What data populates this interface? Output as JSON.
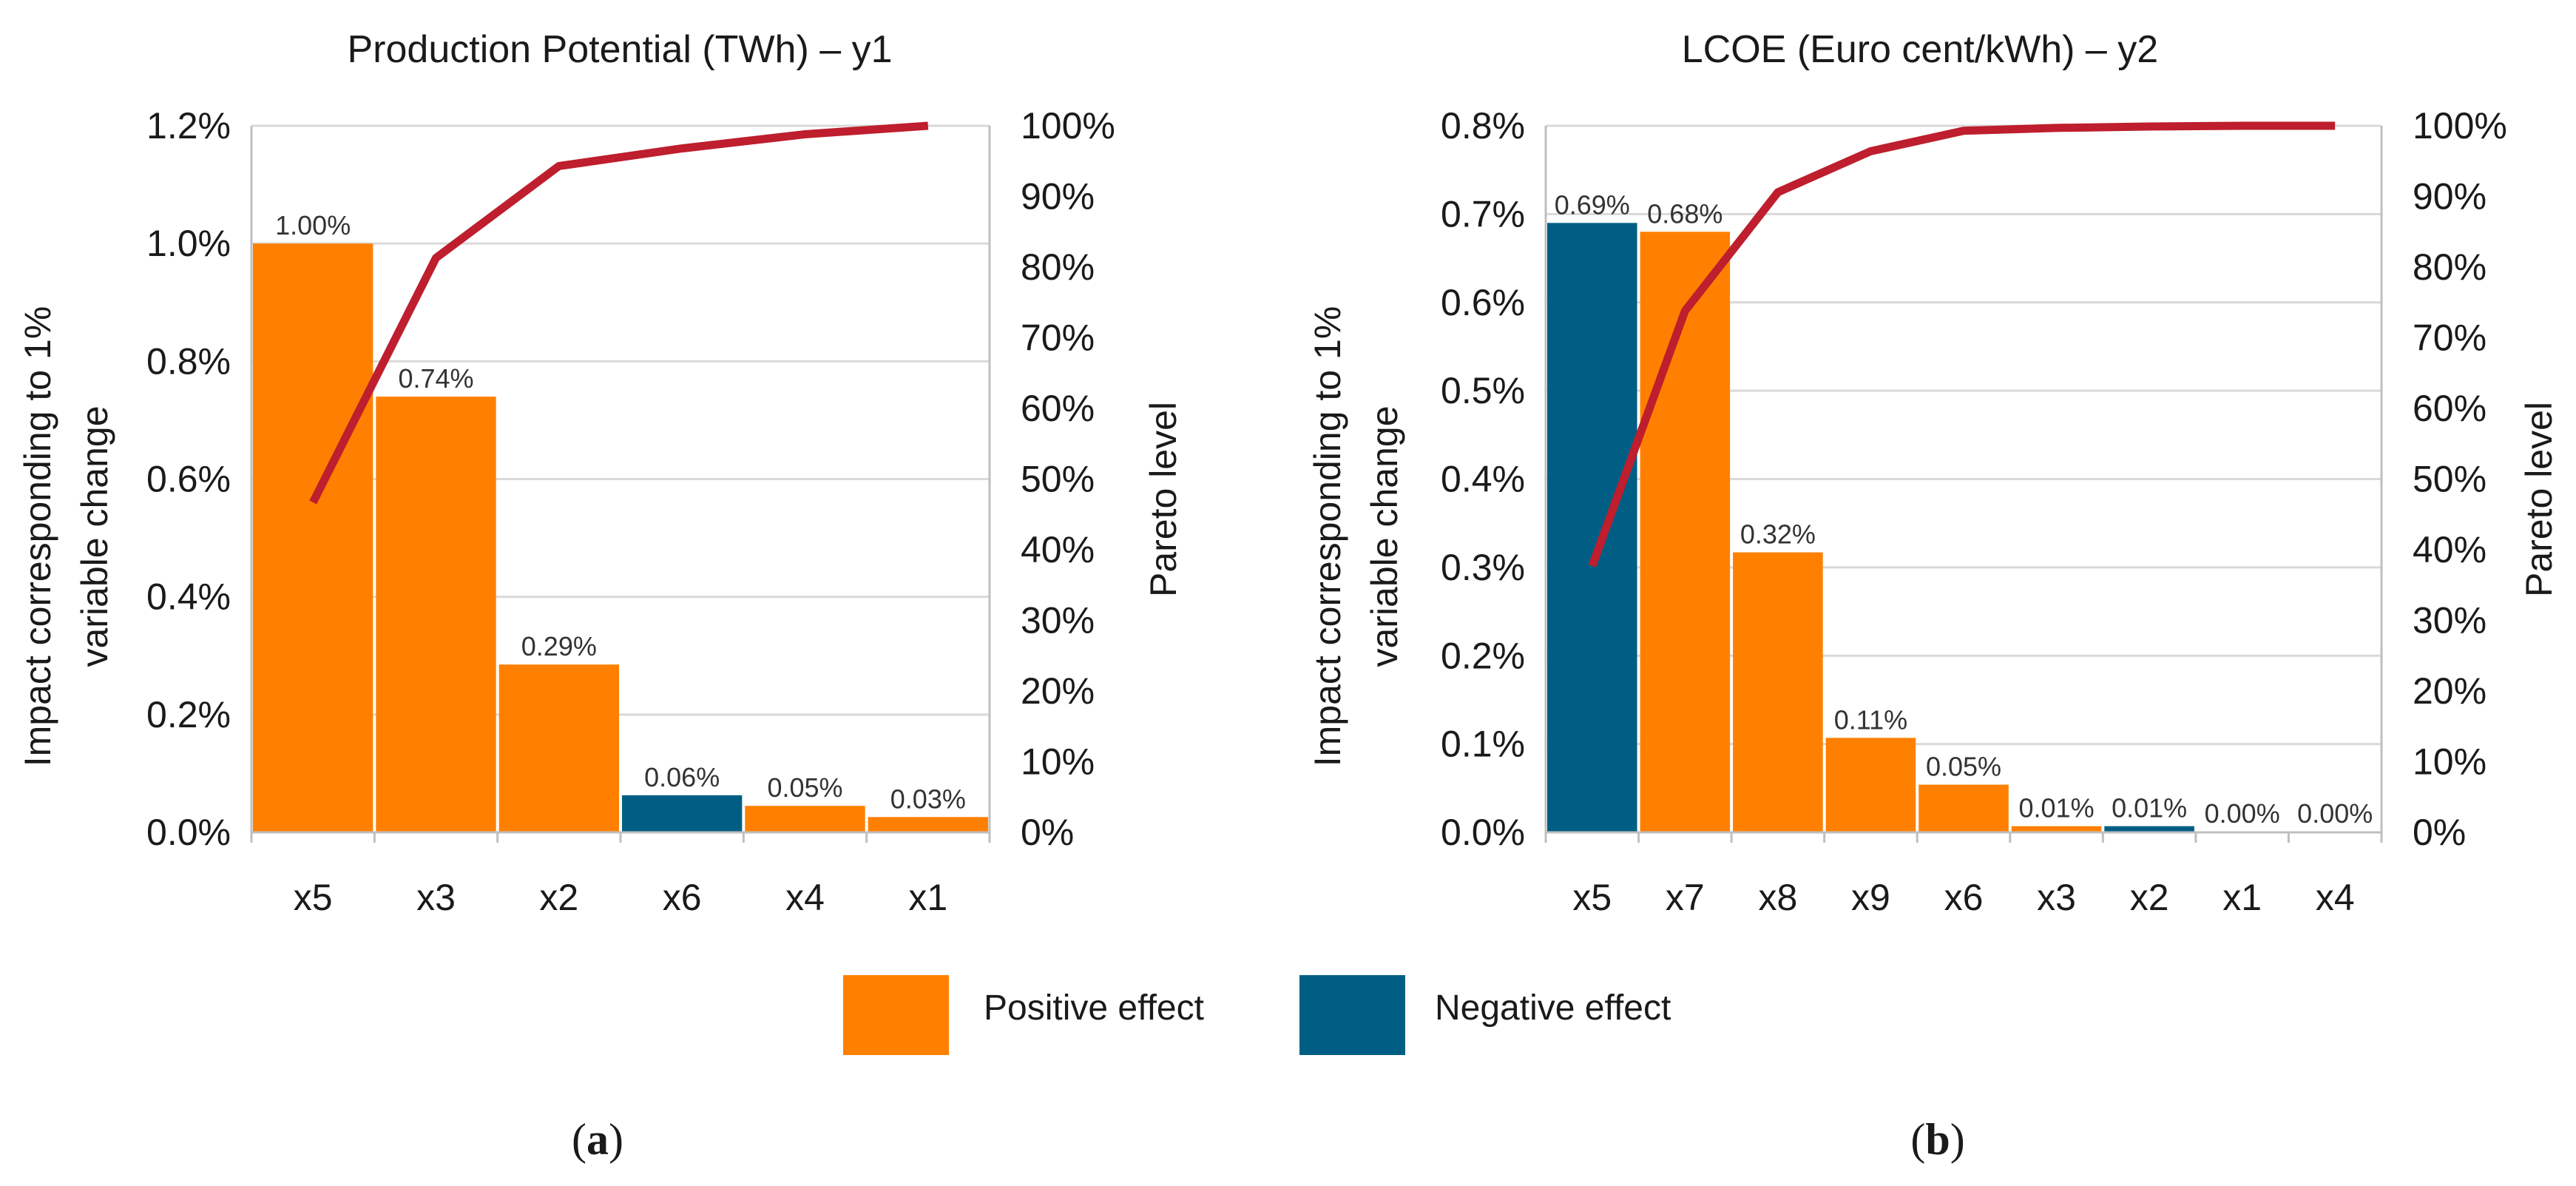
{
  "legend": {
    "positive_label": "Positive effect",
    "negative_label": "Negative effect",
    "positive_color": "#FF8000",
    "negative_color": "#005E85"
  },
  "pareto_color": "#BE1E2D",
  "chart_data": [
    {
      "type": "bar",
      "panel_label": "(a)",
      "panel_letter": "a",
      "title": "Production Potential (TWh) – y1",
      "xlabel": "",
      "ylabel": "Impact corresponding to 1% variable change",
      "ylabel_lines": [
        "Impact corresponding to 1%",
        "variable change"
      ],
      "y2label": "Pareto level",
      "ylim": [
        0,
        1.2
      ],
      "y_ticks": [
        0,
        0.2,
        0.4,
        0.6,
        0.8,
        1.0,
        1.2
      ],
      "y_tick_labels": [
        "0.0%",
        "0.2%",
        "0.4%",
        "0.6%",
        "0.8%",
        "1.0%",
        "1.2%"
      ],
      "y2lim": [
        0,
        100
      ],
      "y2_ticks": [
        0,
        10,
        20,
        30,
        40,
        50,
        60,
        70,
        80,
        90,
        100
      ],
      "y2_tick_labels": [
        "0%",
        "10%",
        "20%",
        "30%",
        "40%",
        "50%",
        "60%",
        "70%",
        "80%",
        "90%",
        "100%"
      ],
      "categories": [
        "x5",
        "x3",
        "x2",
        "x6",
        "x4",
        "x1"
      ],
      "values": [
        1.0,
        0.74,
        0.285,
        0.063,
        0.045,
        0.026
      ],
      "value_labels": [
        "1.00%",
        "0.74%",
        "0.29%",
        "0.06%",
        "0.05%",
        "0.03%"
      ],
      "effects": [
        "positive",
        "positive",
        "positive",
        "negative",
        "positive",
        "positive"
      ],
      "pareto": [
        46.7,
        81.3,
        94.3,
        96.8,
        98.8,
        100.0
      ],
      "grid": true
    },
    {
      "type": "bar",
      "panel_label": "(b)",
      "panel_letter": "b",
      "title": "LCOE (Euro cent/kWh) – y2",
      "xlabel": "",
      "ylabel": "Impact corresponding to 1% variable change",
      "ylabel_lines": [
        "Impact corresponding to 1%",
        "variable change"
      ],
      "y2label": "Pareto level",
      "ylim": [
        0,
        0.8
      ],
      "y_ticks": [
        0,
        0.1,
        0.2,
        0.3,
        0.4,
        0.5,
        0.6,
        0.7,
        0.8
      ],
      "y_tick_labels": [
        "0.0%",
        "0.1%",
        "0.2%",
        "0.3%",
        "0.4%",
        "0.5%",
        "0.6%",
        "0.7%",
        "0.8%"
      ],
      "y2lim": [
        0,
        100
      ],
      "y2_ticks": [
        0,
        10,
        20,
        30,
        40,
        50,
        60,
        70,
        80,
        90,
        100
      ],
      "y2_tick_labels": [
        "0%",
        "10%",
        "20%",
        "30%",
        "40%",
        "50%",
        "60%",
        "70%",
        "80%",
        "90%",
        "100%"
      ],
      "categories": [
        "x5",
        "x7",
        "x8",
        "x9",
        "x6",
        "x3",
        "x2",
        "x1",
        "x4"
      ],
      "values": [
        0.69,
        0.68,
        0.317,
        0.107,
        0.054,
        0.007,
        0.007,
        0.001,
        0.001
      ],
      "value_labels": [
        "0.69%",
        "0.68%",
        "0.32%",
        "0.11%",
        "0.05%",
        "0.01%",
        "0.01%",
        "0.00%",
        "0.00%"
      ],
      "effects": [
        "negative",
        "positive",
        "positive",
        "positive",
        "positive",
        "positive",
        "negative",
        "positive",
        "positive"
      ],
      "pareto": [
        37.7,
        73.8,
        90.6,
        96.4,
        99.3,
        99.7,
        99.9,
        100.0,
        100.0
      ],
      "grid": true
    }
  ]
}
